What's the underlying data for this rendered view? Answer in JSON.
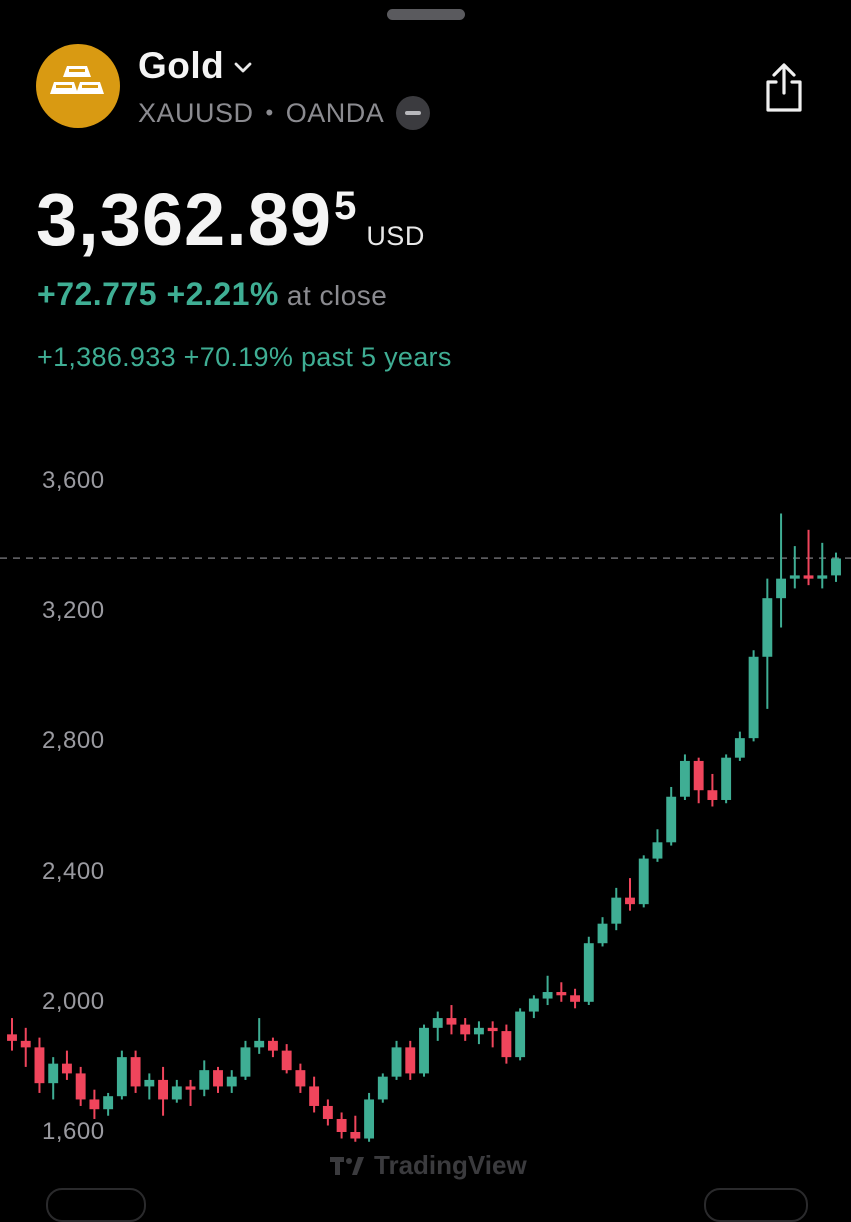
{
  "header": {
    "title": "Gold",
    "symbol": "XAUUSD",
    "separator": "•",
    "exchange": "OANDA"
  },
  "quote": {
    "price_main": "3,362.89",
    "price_sup": "5",
    "currency": "USD",
    "change": "+72.775 +2.21%",
    "change_label": "at close",
    "change_period": "+1,386.933 +70.19%",
    "change_period_label": "past 5 years"
  },
  "colors": {
    "up": "#3fae94",
    "down": "#f0455c",
    "logo": "#d99a12"
  },
  "icons": [
    "gold-bars-icon",
    "chevron-down-icon",
    "share-icon",
    "tradingview-logo"
  ],
  "watermark": "TradingView",
  "chart_data": {
    "type": "candlestick",
    "y_ticks": [
      "3,600",
      "3,200",
      "2,800",
      "2,400",
      "2,000",
      "1,600"
    ],
    "ylim": [
      1600,
      3600
    ],
    "last_price_line": 3362.895,
    "candles": [
      [
        1900,
        1950,
        1850,
        1880
      ],
      [
        1880,
        1920,
        1800,
        1860
      ],
      [
        1860,
        1890,
        1720,
        1750
      ],
      [
        1750,
        1830,
        1700,
        1810
      ],
      [
        1810,
        1850,
        1760,
        1780
      ],
      [
        1780,
        1800,
        1680,
        1700
      ],
      [
        1700,
        1730,
        1640,
        1670
      ],
      [
        1670,
        1720,
        1650,
        1710
      ],
      [
        1710,
        1850,
        1700,
        1830
      ],
      [
        1830,
        1850,
        1720,
        1740
      ],
      [
        1740,
        1780,
        1700,
        1760
      ],
      [
        1760,
        1800,
        1650,
        1700
      ],
      [
        1700,
        1760,
        1690,
        1740
      ],
      [
        1740,
        1760,
        1680,
        1730
      ],
      [
        1730,
        1820,
        1710,
        1790
      ],
      [
        1790,
        1800,
        1720,
        1740
      ],
      [
        1740,
        1790,
        1720,
        1770
      ],
      [
        1770,
        1880,
        1760,
        1860
      ],
      [
        1860,
        1950,
        1840,
        1880
      ],
      [
        1880,
        1890,
        1830,
        1850
      ],
      [
        1850,
        1870,
        1780,
        1790
      ],
      [
        1790,
        1810,
        1720,
        1740
      ],
      [
        1740,
        1770,
        1660,
        1680
      ],
      [
        1680,
        1700,
        1620,
        1640
      ],
      [
        1640,
        1660,
        1580,
        1600
      ],
      [
        1600,
        1650,
        1570,
        1580
      ],
      [
        1580,
        1720,
        1570,
        1700
      ],
      [
        1700,
        1780,
        1690,
        1770
      ],
      [
        1770,
        1880,
        1760,
        1860
      ],
      [
        1860,
        1880,
        1760,
        1780
      ],
      [
        1780,
        1930,
        1770,
        1920
      ],
      [
        1920,
        1970,
        1880,
        1950
      ],
      [
        1950,
        1990,
        1900,
        1930
      ],
      [
        1930,
        1950,
        1880,
        1900
      ],
      [
        1900,
        1940,
        1870,
        1920
      ],
      [
        1920,
        1940,
        1860,
        1910
      ],
      [
        1910,
        1930,
        1810,
        1830
      ],
      [
        1830,
        1980,
        1820,
        1970
      ],
      [
        1970,
        2020,
        1950,
        2010
      ],
      [
        2010,
        2080,
        1990,
        2030
      ],
      [
        2030,
        2060,
        2000,
        2020
      ],
      [
        2020,
        2040,
        1980,
        2000
      ],
      [
        2000,
        2200,
        1990,
        2180
      ],
      [
        2180,
        2260,
        2170,
        2240
      ],
      [
        2240,
        2350,
        2220,
        2320
      ],
      [
        2320,
        2380,
        2280,
        2300
      ],
      [
        2300,
        2450,
        2290,
        2440
      ],
      [
        2440,
        2530,
        2430,
        2490
      ],
      [
        2490,
        2660,
        2480,
        2630
      ],
      [
        2630,
        2760,
        2620,
        2740
      ],
      [
        2740,
        2750,
        2610,
        2650
      ],
      [
        2650,
        2700,
        2600,
        2620
      ],
      [
        2620,
        2760,
        2610,
        2750
      ],
      [
        2750,
        2830,
        2740,
        2810
      ],
      [
        2810,
        3080,
        2800,
        3060
      ],
      [
        3060,
        3300,
        2900,
        3240
      ],
      [
        3240,
        3500,
        3150,
        3300
      ],
      [
        3300,
        3400,
        3270,
        3310
      ],
      [
        3310,
        3450,
        3280,
        3300
      ],
      [
        3300,
        3410,
        3270,
        3310
      ],
      [
        3310,
        3380,
        3290,
        3362
      ]
    ]
  }
}
